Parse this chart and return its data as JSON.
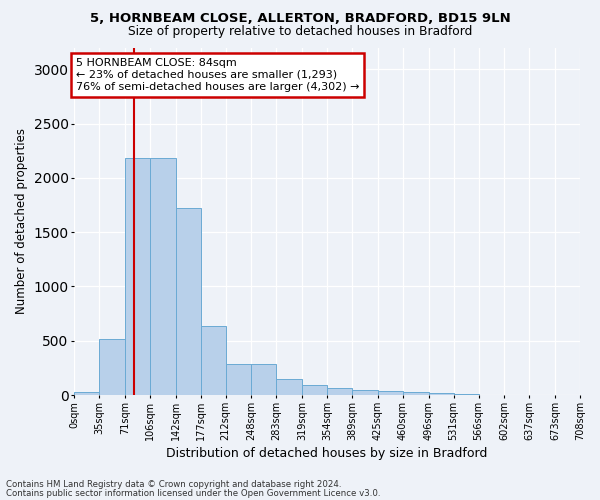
{
  "title_line1": "5, HORNBEAM CLOSE, ALLERTON, BRADFORD, BD15 9LN",
  "title_line2": "Size of property relative to detached houses in Bradford",
  "xlabel": "Distribution of detached houses by size in Bradford",
  "ylabel": "Number of detached properties",
  "bar_color": "#b8d0ea",
  "bar_edge_color": "#6aaad4",
  "background_color": "#eef2f8",
  "grid_color": "#ffffff",
  "bins": [
    0,
    35,
    71,
    106,
    142,
    177,
    212,
    248,
    283,
    319,
    354,
    389,
    425,
    460,
    496,
    531,
    566,
    602,
    637,
    673,
    708
  ],
  "bin_labels": [
    "0sqm",
    "35sqm",
    "71sqm",
    "106sqm",
    "142sqm",
    "177sqm",
    "212sqm",
    "248sqm",
    "283sqm",
    "319sqm",
    "354sqm",
    "389sqm",
    "425sqm",
    "460sqm",
    "496sqm",
    "531sqm",
    "566sqm",
    "602sqm",
    "637sqm",
    "673sqm",
    "708sqm"
  ],
  "values": [
    30,
    520,
    2185,
    2185,
    1720,
    640,
    285,
    285,
    150,
    90,
    70,
    50,
    35,
    25,
    20,
    8,
    4,
    2,
    1,
    0
  ],
  "property_line_x": 84,
  "annotation_text": "5 HORNBEAM CLOSE: 84sqm\n← 23% of detached houses are smaller (1,293)\n76% of semi-detached houses are larger (4,302) →",
  "annotation_box_color": "#ffffff",
  "annotation_edge_color": "#cc0000",
  "red_line_color": "#cc0000",
  "ylim": [
    0,
    3200
  ],
  "yticks": [
    0,
    500,
    1000,
    1500,
    2000,
    2500,
    3000
  ],
  "footer_line1": "Contains HM Land Registry data © Crown copyright and database right 2024.",
  "footer_line2": "Contains public sector information licensed under the Open Government Licence v3.0."
}
